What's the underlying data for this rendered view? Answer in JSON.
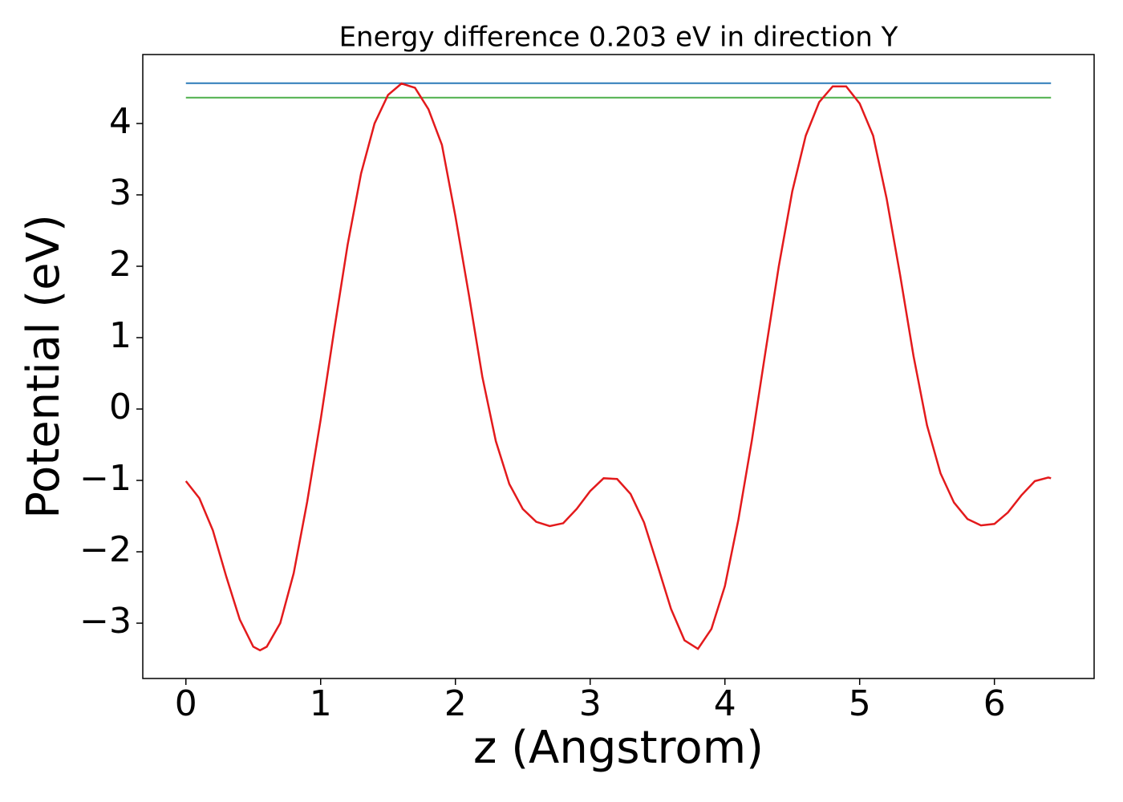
{
  "chart_data": {
    "type": "line",
    "title": "Energy difference 0.203 eV in direction Y",
    "xlabel": "z (Angstrom)",
    "ylabel": "Potential (eV)",
    "xlim": [
      -0.32,
      6.74
    ],
    "ylim": [
      -3.775,
      4.966
    ],
    "xticks": [
      0,
      1,
      2,
      3,
      4,
      5,
      6
    ],
    "yticks": [
      {
        "value": -3,
        "label": "−3"
      },
      {
        "value": -2,
        "label": "−2"
      },
      {
        "value": -1,
        "label": "−1"
      },
      0,
      1,
      2,
      3,
      4
    ],
    "grid": false,
    "series": [
      {
        "color": "#2a7ab8",
        "x": [
          0,
          6.42
        ],
        "values": [
          4.565,
          4.565
        ]
      },
      {
        "color": "#4daf4a",
        "x": [
          0,
          6.42
        ],
        "values": [
          4.362,
          4.362
        ]
      },
      {
        "color": "#e31a1c",
        "x": [
          0,
          0.1,
          0.2,
          0.3,
          0.4,
          0.5,
          0.55,
          0.6,
          0.7,
          0.8,
          0.9,
          1.0,
          1.1,
          1.2,
          1.3,
          1.4,
          1.5,
          1.6,
          1.7,
          1.8,
          1.9,
          2.0,
          2.1,
          2.2,
          2.3,
          2.4,
          2.5,
          2.6,
          2.7,
          2.8,
          2.9,
          3.0,
          3.1,
          3.2,
          3.3,
          3.4,
          3.5,
          3.6,
          3.7,
          3.8,
          3.9,
          4.0,
          4.1,
          4.2,
          4.3,
          4.4,
          4.5,
          4.6,
          4.7,
          4.8,
          4.9,
          5.0,
          5.1,
          5.2,
          5.3,
          5.4,
          5.5,
          5.6,
          5.7,
          5.8,
          5.9,
          6.0,
          6.1,
          6.2,
          6.3,
          6.4,
          6.42
        ],
        "values": [
          -1.01,
          -1.25,
          -1.7,
          -2.35,
          -2.95,
          -3.33,
          -3.38,
          -3.33,
          -3.0,
          -2.3,
          -1.3,
          -0.15,
          1.1,
          2.3,
          3.3,
          4.0,
          4.4,
          4.56,
          4.5,
          4.2,
          3.7,
          2.7,
          1.6,
          0.45,
          -0.45,
          -1.05,
          -1.4,
          -1.58,
          -1.64,
          -1.6,
          -1.4,
          -1.15,
          -0.97,
          -0.98,
          -1.19,
          -1.59,
          -2.19,
          -2.8,
          -3.24,
          -3.36,
          -3.08,
          -2.48,
          -1.55,
          -0.44,
          0.79,
          2.0,
          3.05,
          3.83,
          4.3,
          4.52,
          4.52,
          4.28,
          3.83,
          2.95,
          1.88,
          0.74,
          -0.23,
          -0.9,
          -1.31,
          -1.54,
          -1.63,
          -1.61,
          -1.45,
          -1.21,
          -1.01,
          -0.96,
          -0.97
        ]
      }
    ]
  }
}
